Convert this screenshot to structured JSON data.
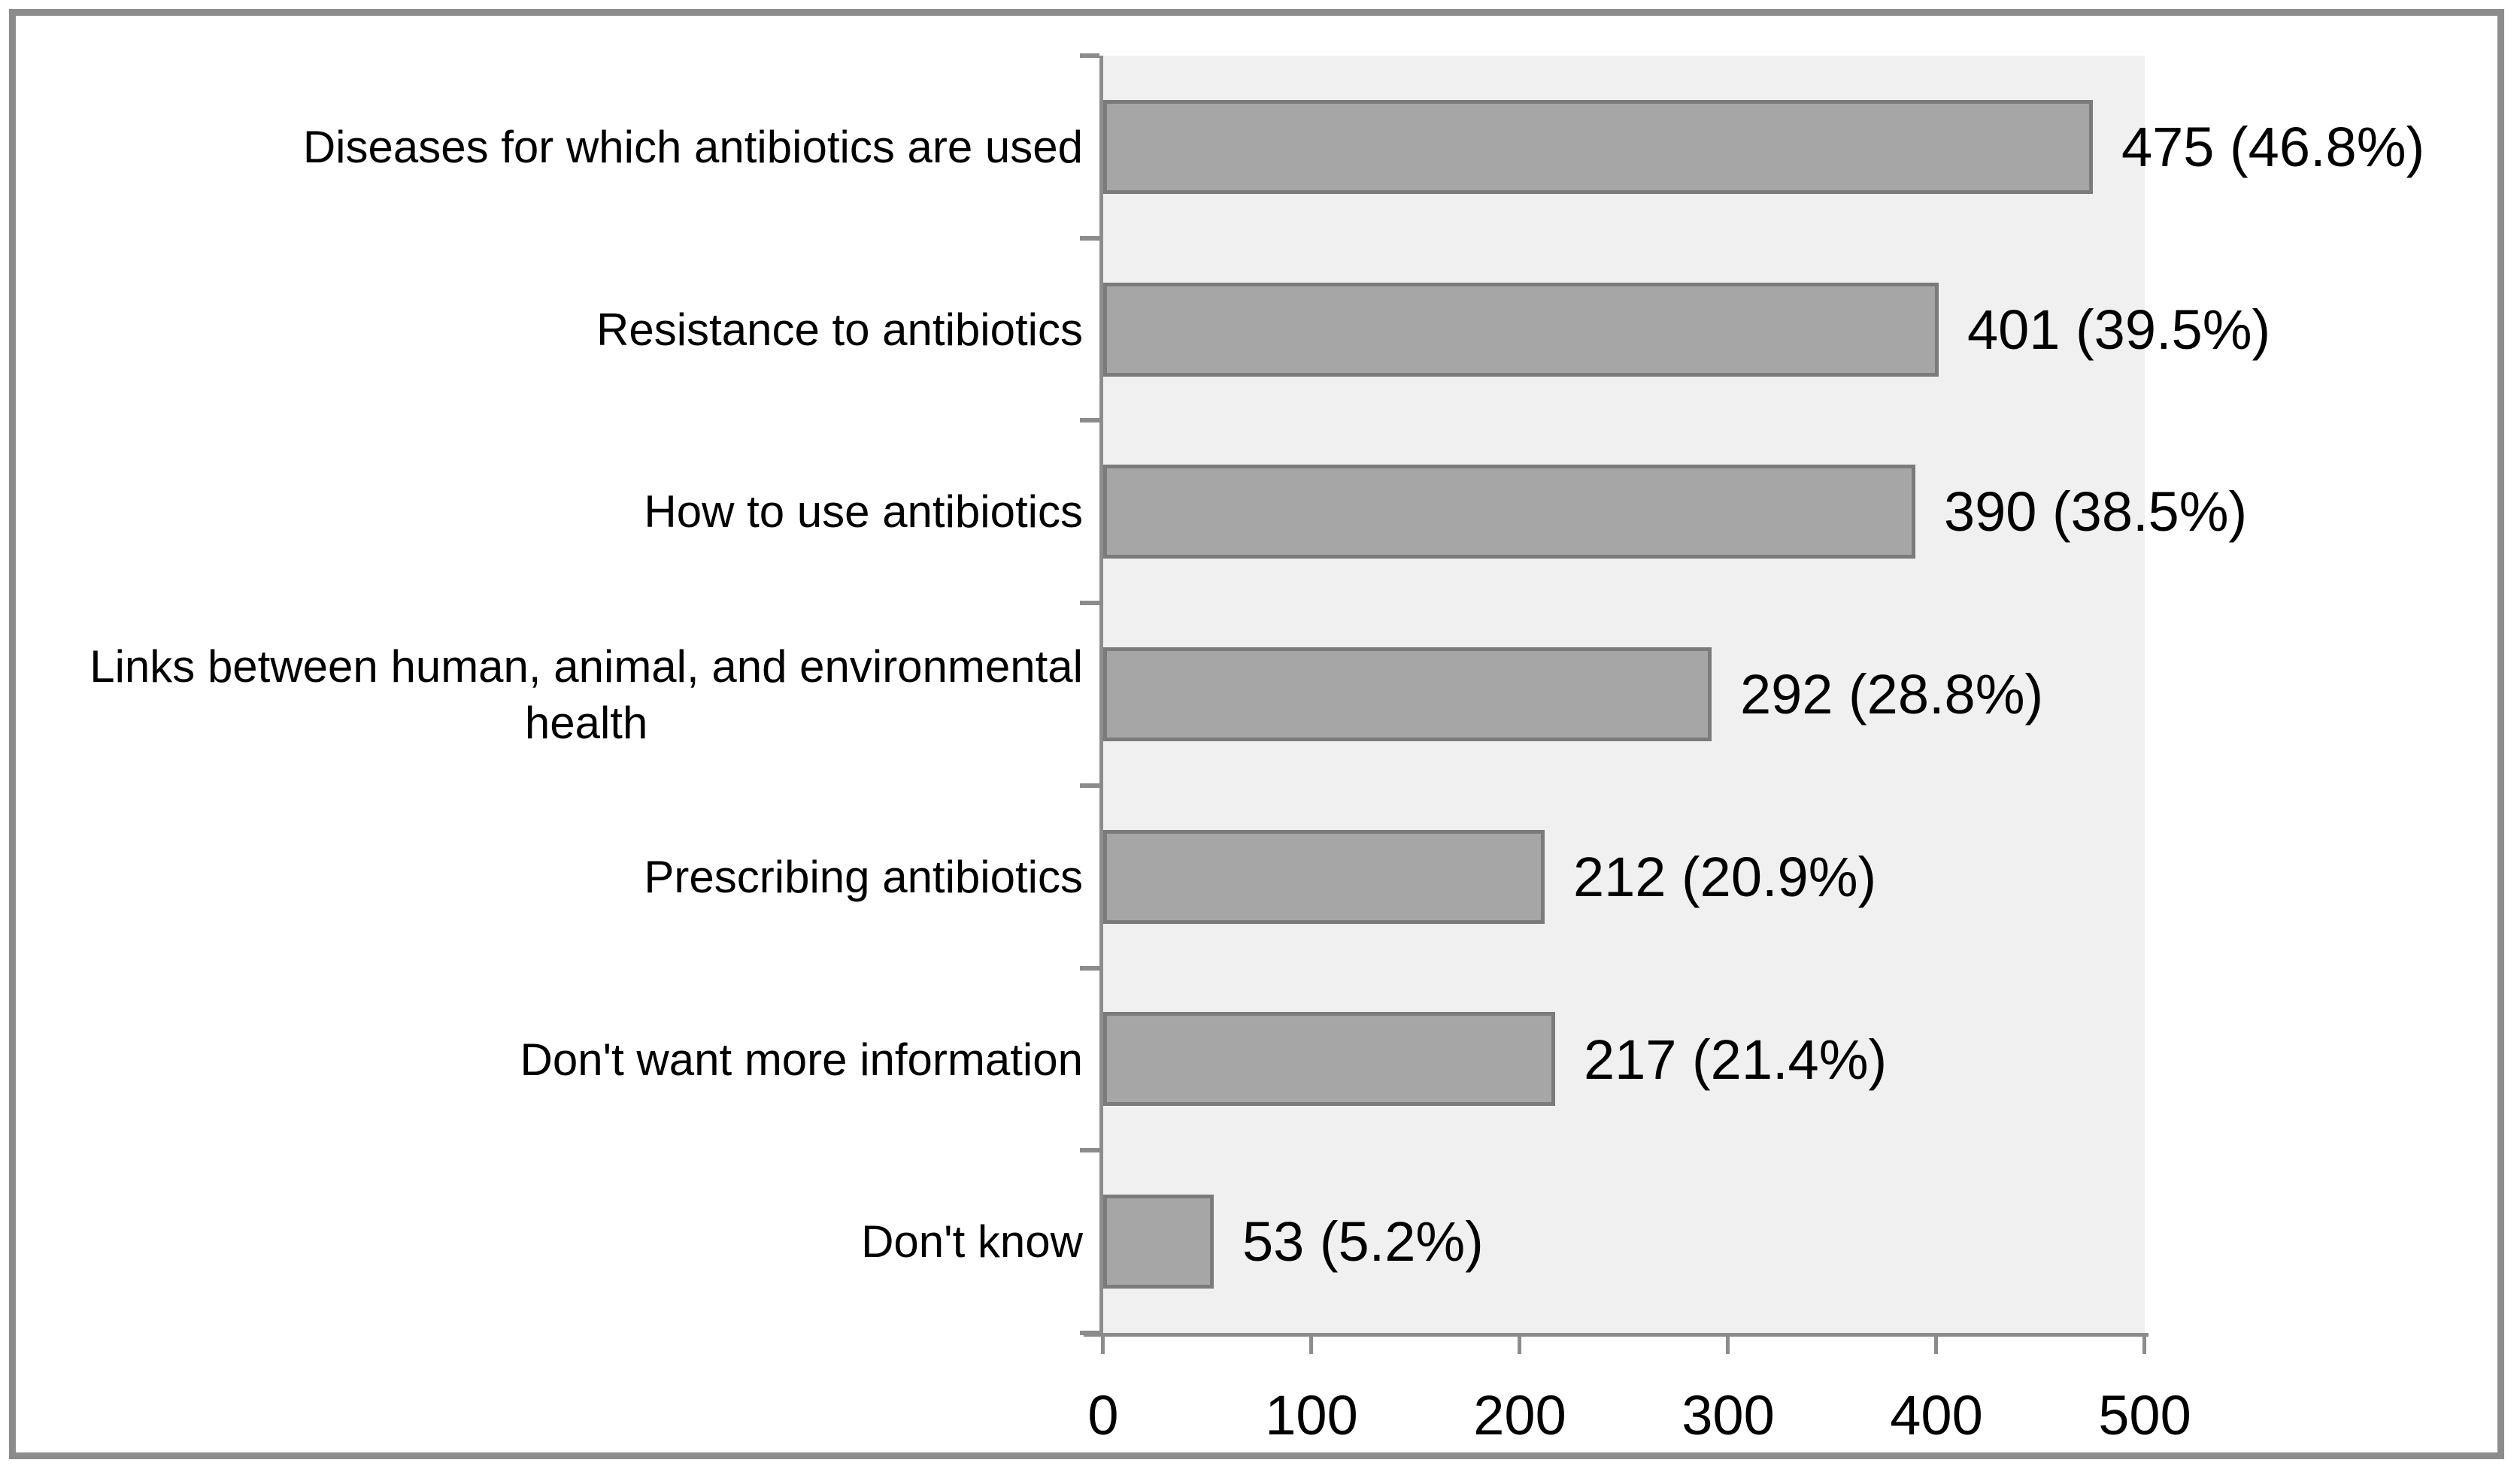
{
  "chart_data": {
    "type": "bar",
    "orientation": "horizontal",
    "title": "",
    "xlabel": "",
    "ylabel": "",
    "grid": false,
    "legend": null,
    "categories": [
      "Diseases for which antibiotics are used",
      "Resistance to antibiotics",
      "How to use antibiotics",
      "Links between human, animal, and environmental\nhealth",
      "Prescribing antibiotics",
      "Don't want more information",
      "Don't know"
    ],
    "values": [
      475,
      401,
      390,
      292,
      212,
      217,
      53
    ],
    "value_labels": [
      "475 (46.8%)",
      "401 (39.5%)",
      "390 (38.5%)",
      "292 (28.8%)",
      "212 (20.9%)",
      "217 (21.4%)",
      "53 (5.2%)"
    ],
    "x_ticks": [
      "0",
      "100",
      "200",
      "300",
      "400",
      "500"
    ],
    "x_tick_values": [
      0,
      100,
      200,
      300,
      400,
      500
    ],
    "xlim": [
      0,
      500
    ],
    "colors": {
      "bar_fill": "#A6A6A6",
      "bar_border": "#7B7B7B",
      "plot_background": "#F0F0F0",
      "axis_line": "#8C8C8C",
      "frame_border": "#8C8C8C",
      "page_background": "#FFFFFF",
      "text": "#000000"
    }
  }
}
